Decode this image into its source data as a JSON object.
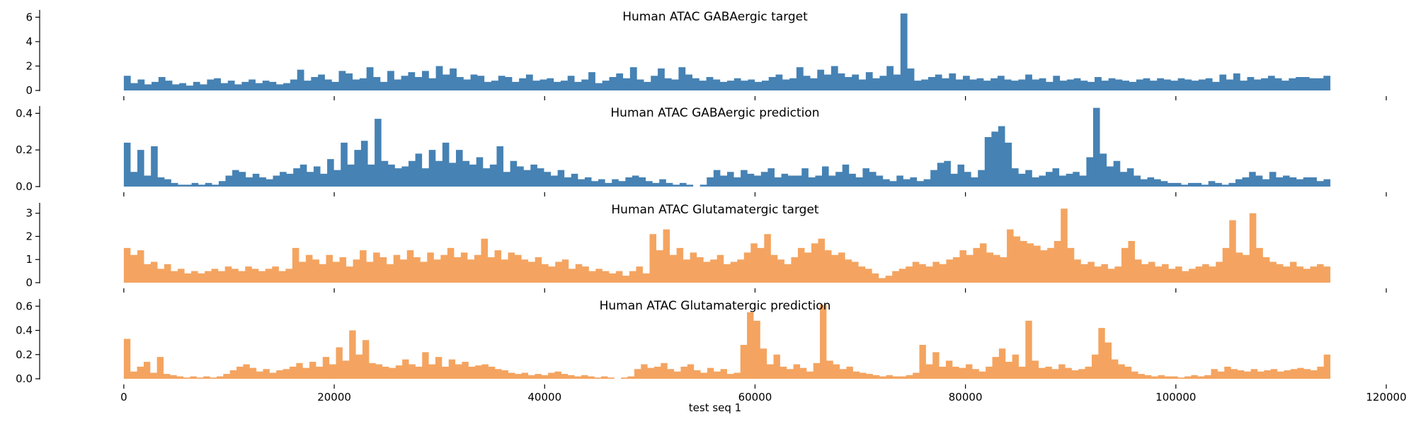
{
  "figure": {
    "xlabel": "test seq 1"
  },
  "colors": {
    "gaba": "#4682b4",
    "glut": "#f4a460"
  },
  "chart_data": [
    {
      "type": "area",
      "title": "Human ATAC GABAergic target",
      "color": "#4682b4",
      "xlim": [
        -8000,
        120000
      ],
      "ylim": [
        0,
        6.6
      ],
      "yticks": [
        0,
        2,
        4,
        6
      ],
      "ytick_labels": [
        "0",
        "2",
        "4",
        "6"
      ],
      "xticks": [
        0,
        20000,
        40000,
        60000,
        80000,
        100000,
        120000
      ],
      "xtick_labels": [],
      "x_end": 114688,
      "grid": false,
      "bin_size": 1024,
      "values": [
        1.2,
        0.6,
        0.9,
        0.5,
        0.7,
        1.1,
        0.8,
        0.5,
        0.6,
        0.4,
        0.7,
        0.5,
        0.9,
        1.0,
        0.6,
        0.8,
        0.5,
        0.7,
        0.9,
        0.6,
        0.8,
        0.7,
        0.5,
        0.6,
        0.9,
        1.7,
        0.8,
        1.1,
        1.3,
        0.9,
        0.7,
        1.6,
        1.4,
        0.9,
        1.0,
        1.9,
        1.1,
        0.7,
        1.6,
        0.9,
        1.2,
        1.5,
        1.1,
        1.6,
        1.0,
        2.0,
        1.3,
        1.8,
        1.1,
        0.9,
        1.3,
        1.2,
        0.7,
        0.8,
        1.2,
        1.1,
        0.7,
        1.0,
        1.3,
        0.8,
        0.9,
        1.0,
        0.7,
        0.8,
        1.2,
        0.7,
        0.9,
        1.5,
        0.6,
        0.8,
        1.1,
        1.4,
        1.0,
        1.9,
        0.9,
        0.7,
        1.2,
        1.8,
        1.0,
        0.9,
        1.9,
        1.3,
        1.0,
        0.8,
        1.1,
        0.9,
        0.7,
        0.8,
        1.0,
        0.8,
        0.9,
        0.7,
        0.8,
        1.1,
        1.3,
        0.9,
        1.0,
        1.9,
        1.2,
        1.0,
        1.7,
        1.3,
        2.0,
        1.4,
        1.1,
        1.3,
        0.9,
        1.5,
        1.0,
        1.2,
        2.0,
        1.3,
        6.3,
        1.8,
        0.8,
        0.9,
        1.1,
        1.3,
        1.0,
        1.4,
        0.9,
        1.2,
        0.9,
        1.0,
        0.8,
        1.0,
        1.2,
        0.9,
        0.8,
        0.9,
        1.3,
        0.9,
        1.0,
        0.7,
        1.2,
        0.8,
        0.9,
        1.0,
        0.8,
        0.7,
        1.1,
        0.8,
        1.0,
        0.9,
        0.8,
        0.7,
        0.9,
        1.0,
        0.8,
        1.0,
        0.9,
        0.8,
        1.0,
        0.9,
        0.8,
        0.9,
        1.0,
        0.7,
        1.3,
        0.9,
        1.4,
        0.8,
        1.1,
        0.9,
        1.0,
        1.2,
        1.0,
        0.8,
        1.0,
        1.1,
        1.1,
        1.0,
        1.0,
        1.2
      ]
    },
    {
      "type": "area",
      "title": "Human ATAC GABAergic prediction",
      "color": "#4682b4",
      "xlim": [
        -8000,
        120000
      ],
      "ylim": [
        0,
        0.44
      ],
      "yticks": [
        0.0,
        0.2,
        0.4
      ],
      "ytick_labels": [
        "0.0",
        "0.2",
        "0.4"
      ],
      "xticks": [
        0,
        20000,
        40000,
        60000,
        80000,
        100000,
        120000
      ],
      "xtick_labels": [],
      "x_end": 114688,
      "grid": false,
      "bin_size": 1024,
      "values": [
        0.24,
        0.08,
        0.2,
        0.06,
        0.22,
        0.05,
        0.04,
        0.02,
        0.01,
        0.01,
        0.02,
        0.01,
        0.02,
        0.01,
        0.03,
        0.06,
        0.09,
        0.08,
        0.05,
        0.07,
        0.05,
        0.04,
        0.06,
        0.08,
        0.07,
        0.1,
        0.12,
        0.08,
        0.11,
        0.07,
        0.15,
        0.09,
        0.24,
        0.12,
        0.2,
        0.25,
        0.12,
        0.37,
        0.14,
        0.12,
        0.1,
        0.11,
        0.14,
        0.18,
        0.1,
        0.2,
        0.14,
        0.24,
        0.13,
        0.2,
        0.14,
        0.12,
        0.16,
        0.1,
        0.12,
        0.22,
        0.08,
        0.14,
        0.11,
        0.09,
        0.12,
        0.1,
        0.08,
        0.06,
        0.09,
        0.05,
        0.07,
        0.04,
        0.05,
        0.03,
        0.04,
        0.02,
        0.04,
        0.03,
        0.05,
        0.06,
        0.05,
        0.03,
        0.02,
        0.04,
        0.02,
        0.01,
        0.02,
        0.01,
        0.0,
        0.01,
        0.05,
        0.09,
        0.06,
        0.08,
        0.05,
        0.09,
        0.07,
        0.06,
        0.08,
        0.1,
        0.05,
        0.07,
        0.06,
        0.06,
        0.1,
        0.05,
        0.06,
        0.11,
        0.06,
        0.08,
        0.12,
        0.07,
        0.05,
        0.1,
        0.08,
        0.06,
        0.04,
        0.03,
        0.06,
        0.04,
        0.05,
        0.03,
        0.04,
        0.09,
        0.13,
        0.14,
        0.07,
        0.12,
        0.08,
        0.05,
        0.09,
        0.27,
        0.3,
        0.33,
        0.24,
        0.1,
        0.07,
        0.09,
        0.05,
        0.06,
        0.08,
        0.1,
        0.06,
        0.07,
        0.08,
        0.06,
        0.16,
        0.43,
        0.18,
        0.11,
        0.14,
        0.08,
        0.1,
        0.06,
        0.04,
        0.05,
        0.04,
        0.03,
        0.02,
        0.02,
        0.01,
        0.02,
        0.02,
        0.01,
        0.03,
        0.02,
        0.01,
        0.02,
        0.04,
        0.05,
        0.08,
        0.06,
        0.04,
        0.08,
        0.05,
        0.06,
        0.05,
        0.04,
        0.05,
        0.05,
        0.03,
        0.04
      ]
    },
    {
      "type": "area",
      "title": "Human ATAC Glutamatergic target",
      "color": "#f4a460",
      "xlim": [
        -8000,
        120000
      ],
      "ylim": [
        0,
        3.45
      ],
      "yticks": [
        0,
        1,
        2,
        3
      ],
      "ytick_labels": [
        "0",
        "1",
        "2",
        "3"
      ],
      "xticks": [
        0,
        20000,
        40000,
        60000,
        80000,
        100000,
        120000
      ],
      "xtick_labels": [],
      "x_end": 114688,
      "grid": false,
      "bin_size": 1024,
      "values": [
        1.5,
        1.2,
        1.4,
        0.8,
        0.9,
        0.6,
        0.8,
        0.5,
        0.6,
        0.4,
        0.5,
        0.4,
        0.5,
        0.6,
        0.5,
        0.7,
        0.6,
        0.5,
        0.7,
        0.6,
        0.5,
        0.6,
        0.7,
        0.5,
        0.6,
        1.5,
        0.9,
        1.2,
        1.0,
        0.8,
        1.2,
        0.9,
        1.1,
        0.7,
        1.0,
        1.4,
        0.9,
        1.3,
        1.1,
        0.8,
        1.2,
        1.0,
        1.4,
        1.1,
        0.9,
        1.3,
        1.0,
        1.2,
        1.5,
        1.1,
        1.3,
        1.0,
        1.2,
        1.9,
        1.1,
        1.4,
        1.0,
        1.3,
        1.2,
        1.0,
        0.9,
        1.1,
        0.8,
        0.7,
        0.9,
        1.0,
        0.6,
        0.8,
        0.7,
        0.5,
        0.6,
        0.5,
        0.4,
        0.5,
        0.3,
        0.5,
        0.7,
        0.4,
        2.1,
        1.4,
        2.3,
        1.2,
        1.5,
        1.0,
        1.3,
        1.1,
        0.9,
        1.0,
        1.2,
        0.8,
        0.9,
        1.0,
        1.3,
        1.7,
        1.5,
        2.1,
        1.2,
        1.0,
        0.8,
        1.1,
        1.5,
        1.3,
        1.7,
        1.9,
        1.4,
        1.2,
        1.3,
        1.0,
        0.9,
        0.7,
        0.6,
        0.4,
        0.2,
        0.3,
        0.5,
        0.6,
        0.7,
        0.9,
        0.8,
        0.7,
        0.9,
        0.8,
        1.0,
        1.1,
        1.4,
        1.2,
        1.5,
        1.7,
        1.3,
        1.2,
        1.1,
        2.3,
        2.0,
        1.8,
        1.7,
        1.6,
        1.4,
        1.5,
        1.8,
        3.2,
        1.5,
        1.0,
        0.8,
        0.9,
        0.7,
        0.8,
        0.6,
        0.7,
        1.5,
        1.8,
        1.0,
        0.8,
        0.9,
        0.7,
        0.8,
        0.6,
        0.7,
        0.5,
        0.6,
        0.7,
        0.8,
        0.7,
        0.9,
        1.5,
        2.7,
        1.3,
        1.2,
        3.0,
        1.5,
        1.1,
        0.9,
        0.8,
        0.7,
        0.9,
        0.7,
        0.6,
        0.7,
        0.8,
        0.7
      ]
    },
    {
      "type": "area",
      "title": "Human ATAC Glutamatergic prediction",
      "color": "#f4a460",
      "xlim": [
        -8000,
        120000
      ],
      "ylim": [
        0,
        0.66
      ],
      "yticks": [
        0.0,
        0.2,
        0.4,
        0.6
      ],
      "ytick_labels": [
        "0.0",
        "0.2",
        "0.4",
        "0.6"
      ],
      "xticks": [
        0,
        20000,
        40000,
        60000,
        80000,
        100000,
        120000
      ],
      "xtick_labels": [
        "0",
        "20000",
        "40000",
        "60000",
        "80000",
        "100000",
        "120000"
      ],
      "x_end": 114688,
      "grid": false,
      "bin_size": 1024,
      "values": [
        0.33,
        0.06,
        0.1,
        0.14,
        0.05,
        0.18,
        0.04,
        0.03,
        0.02,
        0.01,
        0.02,
        0.01,
        0.02,
        0.01,
        0.02,
        0.04,
        0.07,
        0.1,
        0.12,
        0.09,
        0.06,
        0.08,
        0.05,
        0.07,
        0.08,
        0.1,
        0.13,
        0.09,
        0.14,
        0.1,
        0.18,
        0.12,
        0.26,
        0.15,
        0.4,
        0.2,
        0.32,
        0.13,
        0.12,
        0.1,
        0.09,
        0.11,
        0.16,
        0.12,
        0.1,
        0.22,
        0.12,
        0.18,
        0.1,
        0.16,
        0.12,
        0.14,
        0.1,
        0.11,
        0.12,
        0.1,
        0.08,
        0.07,
        0.05,
        0.04,
        0.05,
        0.03,
        0.04,
        0.03,
        0.05,
        0.06,
        0.04,
        0.03,
        0.02,
        0.03,
        0.02,
        0.01,
        0.02,
        0.01,
        0.0,
        0.01,
        0.02,
        0.08,
        0.12,
        0.09,
        0.1,
        0.13,
        0.08,
        0.06,
        0.1,
        0.12,
        0.07,
        0.05,
        0.09,
        0.06,
        0.08,
        0.04,
        0.05,
        0.28,
        0.55,
        0.48,
        0.25,
        0.12,
        0.2,
        0.1,
        0.08,
        0.12,
        0.09,
        0.06,
        0.13,
        0.61,
        0.15,
        0.12,
        0.08,
        0.1,
        0.06,
        0.05,
        0.04,
        0.03,
        0.02,
        0.03,
        0.02,
        0.02,
        0.03,
        0.05,
        0.28,
        0.12,
        0.22,
        0.1,
        0.15,
        0.1,
        0.09,
        0.12,
        0.08,
        0.06,
        0.1,
        0.18,
        0.25,
        0.14,
        0.2,
        0.1,
        0.48,
        0.15,
        0.09,
        0.1,
        0.08,
        0.12,
        0.09,
        0.07,
        0.08,
        0.1,
        0.2,
        0.42,
        0.3,
        0.16,
        0.12,
        0.1,
        0.06,
        0.04,
        0.03,
        0.02,
        0.03,
        0.02,
        0.02,
        0.01,
        0.02,
        0.03,
        0.02,
        0.03,
        0.08,
        0.06,
        0.1,
        0.08,
        0.07,
        0.06,
        0.08,
        0.06,
        0.07,
        0.08,
        0.06,
        0.07,
        0.08,
        0.09,
        0.08,
        0.07,
        0.1,
        0.2
      ]
    }
  ]
}
